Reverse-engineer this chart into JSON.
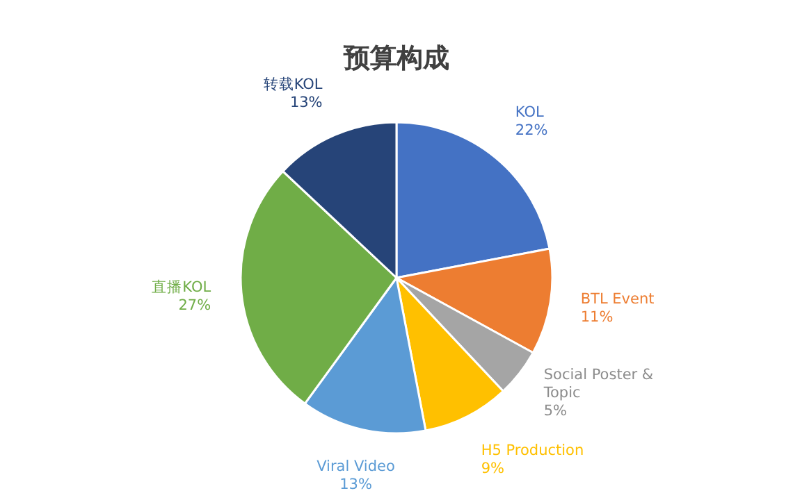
{
  "chart_data": {
    "type": "pie",
    "title": "预算构成",
    "categories": [
      "KOL",
      "BTL Event",
      "Social Poster & Topic",
      "H5 Production",
      "Viral Video",
      "直播KOL",
      "转载KOL"
    ],
    "values": [
      22,
      11,
      5,
      9,
      13,
      27,
      13
    ],
    "value_labels": [
      "22%",
      "11%",
      "5%",
      "9%",
      "13%",
      "27%",
      "13%"
    ],
    "colors": [
      "#4472c4",
      "#ed7d31",
      "#a5a5a5",
      "#ffc000",
      "#5b9bd5",
      "#70ad47",
      "#264478"
    ]
  }
}
